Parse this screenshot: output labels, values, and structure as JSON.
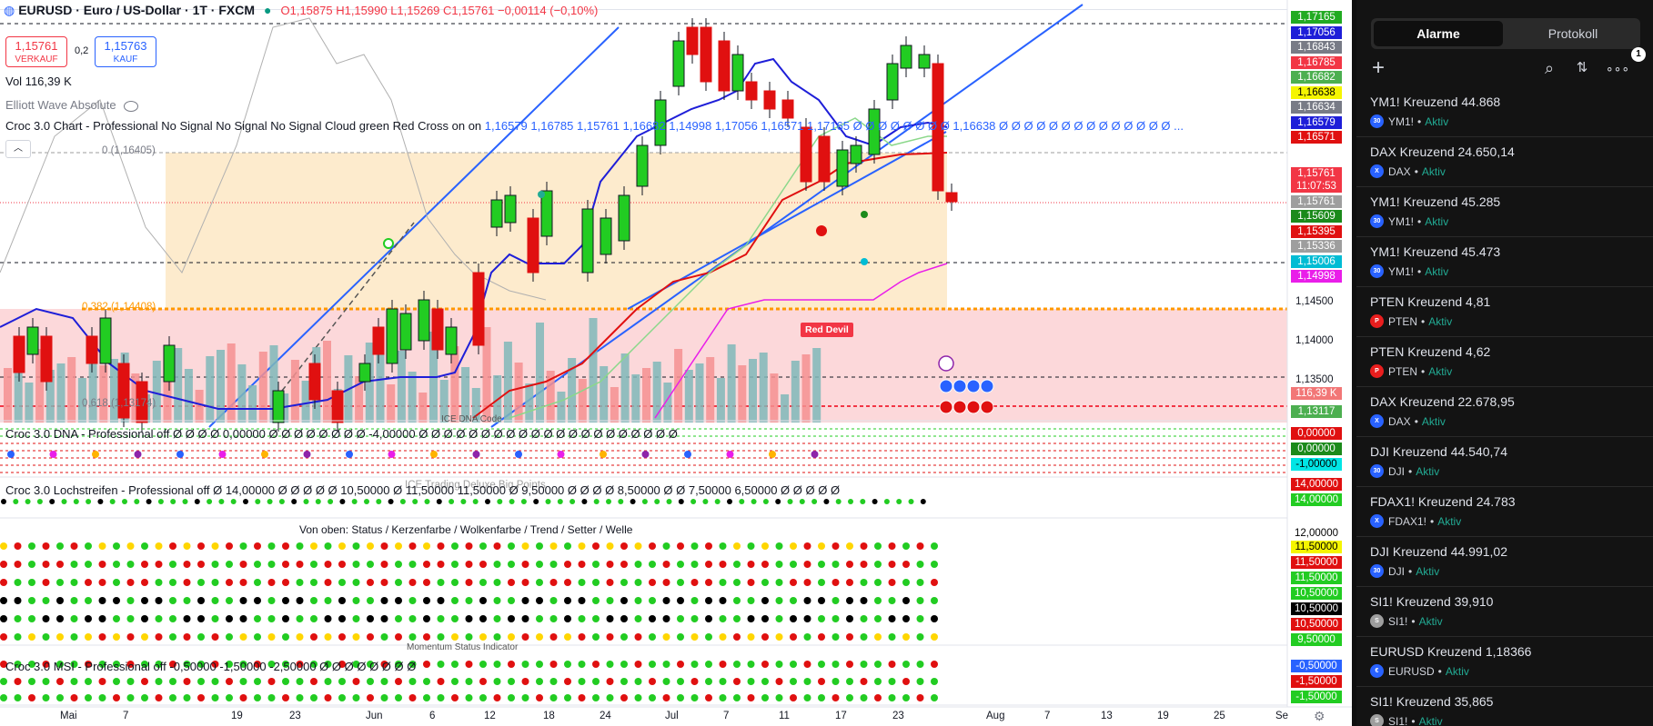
{
  "header": {
    "symbol": "EURUSD · Euro / US-Dollar · 1T · FXCM",
    "ohlc": "O1,15875 H1,15990 L1,15269 C1,15761 −0,00114 (−0,10%)"
  },
  "trade": {
    "sell_price": "1,15761",
    "sell_label": "VERKAUF",
    "spread": "0,2",
    "buy_price": "1,15763",
    "buy_label": "KAUF"
  },
  "indicators": {
    "vol": "Vol  116,39 K",
    "elliott": "Elliott Wave Absolute",
    "croc_chart": "Croc 3.0 Chart - Professional No Signal No Signal No Signal Cloud green Red Cross on on",
    "croc_chart_values": "1,16579  1,16785  1,15761  1,16682  1,14998  1,17056  1,16571  1,17165  Ø Ø Ø Ø Ø Ø Ø Ø 1,16638  Ø Ø Ø Ø Ø Ø Ø Ø Ø Ø Ø Ø Ø Ø ...",
    "fib0": "0 (1,16405)",
    "fib382": "0,382 (1,14408)",
    "fib618": "0,618 (1,13174)",
    "dna": "Croc 3.0 DNA - Professional off  Ø  Ø  Ø  Ø  0,00000  Ø  Ø  Ø  Ø  Ø  Ø  Ø  Ø  -4,00000  Ø  Ø  Ø  Ø  Ø  Ø  Ø  Ø  Ø  Ø  Ø  Ø  Ø  Ø  Ø  Ø  Ø  Ø  Ø  Ø  Ø",
    "dna_code": "ICE DNA Code",
    "loch": "Croc 3.0 Lochstreifen - Professional off  Ø  14,00000  Ø  Ø  Ø  Ø  Ø  10,50000  Ø  11,50000  11,50000  Ø  9,50000  Ø  Ø  Ø  Ø  8,50000  Ø  Ø  7,50000  6,50000  Ø  Ø  Ø  Ø  Ø",
    "ice_trading": "ICE Trading Deluxe Big Points",
    "von_oben": "Von oben: Status / Kerzenfarbe / Wolkenfarbe / Trend / Setter / Welle",
    "msi": "Croc 3.0 MSI - Professional off  -0,50000  -1,50000  -2,50000  Ø  Ø  Ø  Ø  Ø  Ø  Ø  Ø",
    "momentum": "Momentum Status Indicator",
    "red_devil": "Red Devil"
  },
  "price_tags": [
    {
      "v": "1,17165",
      "bg": "#22ab22"
    },
    {
      "v": "1,17056",
      "bg": "#1e1ed8"
    },
    {
      "v": "1,16843",
      "bg": "#787b86"
    },
    {
      "v": "1,16785",
      "bg": "#f23645"
    },
    {
      "v": "1,16682",
      "bg": "#4caf50"
    },
    {
      "v": "1,16638",
      "bg": "#f5f500"
    },
    {
      "v": "1,16634",
      "bg": "#787b86"
    },
    {
      "v": "1,16579",
      "bg": "#1e1ed8"
    },
    {
      "v": "1,16571",
      "bg": "#e01010"
    },
    {
      "v": "1,15761",
      "bg": "#f23645"
    },
    {
      "v": "11:07:53",
      "bg": "#f23645"
    },
    {
      "v": "1,15761",
      "bg": "#9e9e9e"
    },
    {
      "v": "1,15609",
      "bg": "#1b8a1b"
    },
    {
      "v": "1,15395",
      "bg": "#e01010"
    },
    {
      "v": "1,15336",
      "bg": "#9e9e9e"
    },
    {
      "v": "1,15006",
      "bg": "#00bcd4"
    },
    {
      "v": "1,14998",
      "bg": "#e91ee9"
    }
  ],
  "price_axis": [
    "1,14500",
    "1,14000",
    "1,13500"
  ],
  "lower_tags": [
    {
      "v": "116,39 K",
      "bg": "#f27777"
    },
    {
      "v": "1,13117",
      "bg": "#4caf50"
    },
    {
      "v": "0,00000",
      "bg": "#e01010"
    },
    {
      "v": "0,00000",
      "bg": "#1b8a1b"
    },
    {
      "v": "-1,00000",
      "bg": "#00e5e5"
    },
    {
      "v": "14,00000",
      "bg": "#e01010"
    },
    {
      "v": "14,00000",
      "bg": "#22cc22"
    },
    {
      "v": "12,00000",
      "bg": "#ffffff"
    },
    {
      "v": "11,50000",
      "bg": "#f5f500"
    },
    {
      "v": "11,50000",
      "bg": "#e01010"
    },
    {
      "v": "11,50000",
      "bg": "#22cc22"
    },
    {
      "v": "10,50000",
      "bg": "#22cc22"
    },
    {
      "v": "10,50000",
      "bg": "#000000"
    },
    {
      "v": "10,50000",
      "bg": "#e01010"
    },
    {
      "v": "9,50000",
      "bg": "#22cc22"
    },
    {
      "v": "-0,50000",
      "bg": "#2962ff"
    },
    {
      "v": "-1,50000",
      "bg": "#e01010"
    },
    {
      "v": "-1,50000",
      "bg": "#22cc22"
    }
  ],
  "dates": [
    "Mai",
    "7",
    "19",
    "23",
    "Jun",
    "6",
    "12",
    "18",
    "24",
    "Jul",
    "7",
    "11",
    "17",
    "23",
    "Aug",
    "7",
    "13",
    "19",
    "25",
    "Se"
  ],
  "panel": {
    "tab_alarme": "Alarme",
    "tab_protokoll": "Protokoll",
    "badge": "1",
    "alerts": [
      {
        "title": "YM1! Kreuzend 44.868",
        "sym": "YM1!",
        "icon": "30",
        "color": "#2962ff",
        "status": "Aktiv"
      },
      {
        "title": "DAX Kreuzend 24.650,14",
        "sym": "DAX",
        "icon": "X",
        "color": "#2962ff",
        "status": "Aktiv"
      },
      {
        "title": "YM1! Kreuzend 45.285",
        "sym": "YM1!",
        "icon": "30",
        "color": "#2962ff",
        "status": "Aktiv"
      },
      {
        "title": "YM1! Kreuzend 45.473",
        "sym": "YM1!",
        "icon": "30",
        "color": "#2962ff",
        "status": "Aktiv"
      },
      {
        "title": "PTEN Kreuzend 4,81",
        "sym": "PTEN",
        "icon": "P",
        "color": "#e91e1e",
        "status": "Aktiv"
      },
      {
        "title": "PTEN Kreuzend 4,62",
        "sym": "PTEN",
        "icon": "P",
        "color": "#e91e1e",
        "status": "Aktiv"
      },
      {
        "title": "DAX Kreuzend 22.678,95",
        "sym": "DAX",
        "icon": "X",
        "color": "#2962ff",
        "status": "Aktiv"
      },
      {
        "title": "DJI Kreuzend 44.540,74",
        "sym": "DJI",
        "icon": "30",
        "color": "#2962ff",
        "status": "Aktiv"
      },
      {
        "title": "FDAX1! Kreuzend 24.783",
        "sym": "FDAX1!",
        "icon": "X",
        "color": "#2962ff",
        "status": "Aktiv"
      },
      {
        "title": "DJI Kreuzend 44.991,02",
        "sym": "DJI",
        "icon": "30",
        "color": "#2962ff",
        "status": "Aktiv"
      },
      {
        "title": "SI1! Kreuzend 39,910",
        "sym": "SI1!",
        "icon": "S",
        "color": "#9e9e9e",
        "status": "Aktiv"
      },
      {
        "title": "EURUSD Kreuzend 1,18366",
        "sym": "EURUSD",
        "icon": "€",
        "color": "#2962ff",
        "status": "Aktiv"
      },
      {
        "title": "SI1! Kreuzend 35,865",
        "sym": "SI1!",
        "icon": "S",
        "color": "#9e9e9e",
        "status": "Aktiv"
      }
    ]
  }
}
